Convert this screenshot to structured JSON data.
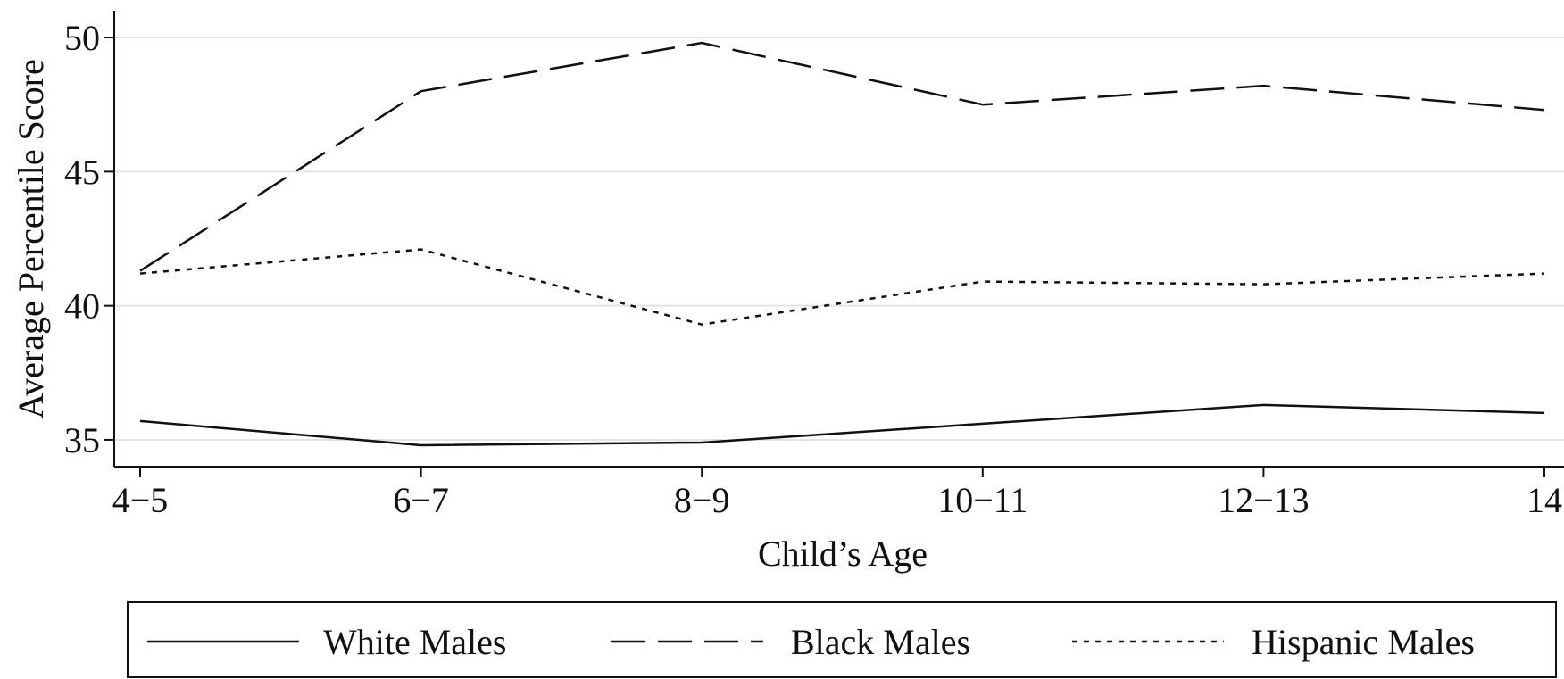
{
  "chart_data": {
    "type": "line",
    "title": "",
    "xlabel": "Child’s Age",
    "ylabel": "Average Percentile Score",
    "categories": [
      "4−5",
      "6−7",
      "8−9",
      "10−11",
      "12−13",
      "14"
    ],
    "ylim": [
      34,
      51
    ],
    "yticks": [
      35,
      40,
      45,
      50
    ],
    "grid": true,
    "legend_position": "bottom",
    "series": [
      {
        "name": "White Males",
        "style": "solid",
        "color": "#111111",
        "values": [
          35.7,
          34.8,
          34.9,
          35.6,
          36.3,
          36.0
        ]
      },
      {
        "name": "Black Males",
        "style": "dashed",
        "color": "#111111",
        "values": [
          41.3,
          48.0,
          49.8,
          47.5,
          48.2,
          47.3
        ]
      },
      {
        "name": "Hispanic Males",
        "style": "dotted",
        "color": "#111111",
        "values": [
          41.2,
          42.1,
          39.3,
          40.9,
          40.8,
          41.2
        ]
      }
    ]
  }
}
